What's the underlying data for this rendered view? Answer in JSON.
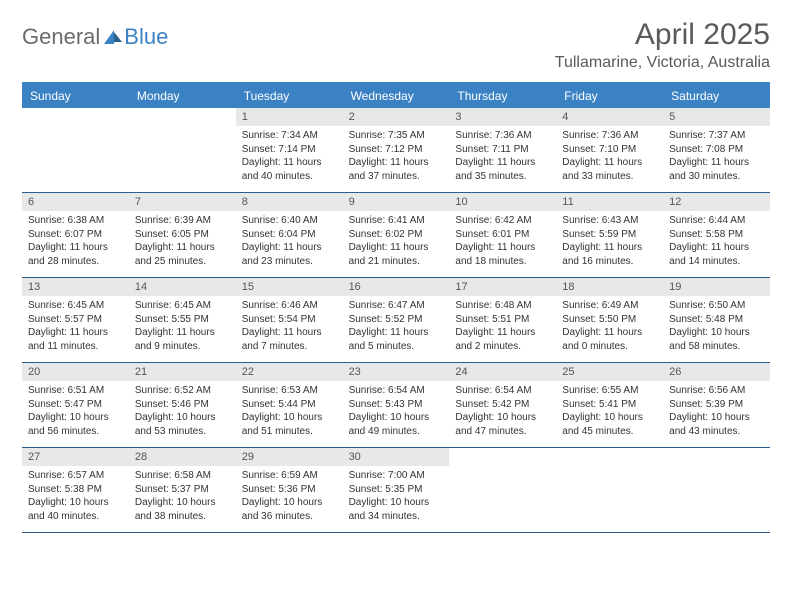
{
  "brand": {
    "part1": "General",
    "part2": "Blue"
  },
  "title": "April 2025",
  "location": "Tullamarine, Victoria, Australia",
  "colors": {
    "header_bg": "#3b82c4",
    "border": "#2a5e8a",
    "daynum_bg": "#e8e8e8",
    "text": "#333333",
    "muted": "#5a5a5a"
  },
  "day_names": [
    "Sunday",
    "Monday",
    "Tuesday",
    "Wednesday",
    "Thursday",
    "Friday",
    "Saturday"
  ],
  "weeks": [
    [
      {
        "empty": true
      },
      {
        "empty": true
      },
      {
        "num": "1",
        "sunrise": "Sunrise: 7:34 AM",
        "sunset": "Sunset: 7:14 PM",
        "daylight": "Daylight: 11 hours and 40 minutes."
      },
      {
        "num": "2",
        "sunrise": "Sunrise: 7:35 AM",
        "sunset": "Sunset: 7:12 PM",
        "daylight": "Daylight: 11 hours and 37 minutes."
      },
      {
        "num": "3",
        "sunrise": "Sunrise: 7:36 AM",
        "sunset": "Sunset: 7:11 PM",
        "daylight": "Daylight: 11 hours and 35 minutes."
      },
      {
        "num": "4",
        "sunrise": "Sunrise: 7:36 AM",
        "sunset": "Sunset: 7:10 PM",
        "daylight": "Daylight: 11 hours and 33 minutes."
      },
      {
        "num": "5",
        "sunrise": "Sunrise: 7:37 AM",
        "sunset": "Sunset: 7:08 PM",
        "daylight": "Daylight: 11 hours and 30 minutes."
      }
    ],
    [
      {
        "num": "6",
        "sunrise": "Sunrise: 6:38 AM",
        "sunset": "Sunset: 6:07 PM",
        "daylight": "Daylight: 11 hours and 28 minutes."
      },
      {
        "num": "7",
        "sunrise": "Sunrise: 6:39 AM",
        "sunset": "Sunset: 6:05 PM",
        "daylight": "Daylight: 11 hours and 25 minutes."
      },
      {
        "num": "8",
        "sunrise": "Sunrise: 6:40 AM",
        "sunset": "Sunset: 6:04 PM",
        "daylight": "Daylight: 11 hours and 23 minutes."
      },
      {
        "num": "9",
        "sunrise": "Sunrise: 6:41 AM",
        "sunset": "Sunset: 6:02 PM",
        "daylight": "Daylight: 11 hours and 21 minutes."
      },
      {
        "num": "10",
        "sunrise": "Sunrise: 6:42 AM",
        "sunset": "Sunset: 6:01 PM",
        "daylight": "Daylight: 11 hours and 18 minutes."
      },
      {
        "num": "11",
        "sunrise": "Sunrise: 6:43 AM",
        "sunset": "Sunset: 5:59 PM",
        "daylight": "Daylight: 11 hours and 16 minutes."
      },
      {
        "num": "12",
        "sunrise": "Sunrise: 6:44 AM",
        "sunset": "Sunset: 5:58 PM",
        "daylight": "Daylight: 11 hours and 14 minutes."
      }
    ],
    [
      {
        "num": "13",
        "sunrise": "Sunrise: 6:45 AM",
        "sunset": "Sunset: 5:57 PM",
        "daylight": "Daylight: 11 hours and 11 minutes."
      },
      {
        "num": "14",
        "sunrise": "Sunrise: 6:45 AM",
        "sunset": "Sunset: 5:55 PM",
        "daylight": "Daylight: 11 hours and 9 minutes."
      },
      {
        "num": "15",
        "sunrise": "Sunrise: 6:46 AM",
        "sunset": "Sunset: 5:54 PM",
        "daylight": "Daylight: 11 hours and 7 minutes."
      },
      {
        "num": "16",
        "sunrise": "Sunrise: 6:47 AM",
        "sunset": "Sunset: 5:52 PM",
        "daylight": "Daylight: 11 hours and 5 minutes."
      },
      {
        "num": "17",
        "sunrise": "Sunrise: 6:48 AM",
        "sunset": "Sunset: 5:51 PM",
        "daylight": "Daylight: 11 hours and 2 minutes."
      },
      {
        "num": "18",
        "sunrise": "Sunrise: 6:49 AM",
        "sunset": "Sunset: 5:50 PM",
        "daylight": "Daylight: 11 hours and 0 minutes."
      },
      {
        "num": "19",
        "sunrise": "Sunrise: 6:50 AM",
        "sunset": "Sunset: 5:48 PM",
        "daylight": "Daylight: 10 hours and 58 minutes."
      }
    ],
    [
      {
        "num": "20",
        "sunrise": "Sunrise: 6:51 AM",
        "sunset": "Sunset: 5:47 PM",
        "daylight": "Daylight: 10 hours and 56 minutes."
      },
      {
        "num": "21",
        "sunrise": "Sunrise: 6:52 AM",
        "sunset": "Sunset: 5:46 PM",
        "daylight": "Daylight: 10 hours and 53 minutes."
      },
      {
        "num": "22",
        "sunrise": "Sunrise: 6:53 AM",
        "sunset": "Sunset: 5:44 PM",
        "daylight": "Daylight: 10 hours and 51 minutes."
      },
      {
        "num": "23",
        "sunrise": "Sunrise: 6:54 AM",
        "sunset": "Sunset: 5:43 PM",
        "daylight": "Daylight: 10 hours and 49 minutes."
      },
      {
        "num": "24",
        "sunrise": "Sunrise: 6:54 AM",
        "sunset": "Sunset: 5:42 PM",
        "daylight": "Daylight: 10 hours and 47 minutes."
      },
      {
        "num": "25",
        "sunrise": "Sunrise: 6:55 AM",
        "sunset": "Sunset: 5:41 PM",
        "daylight": "Daylight: 10 hours and 45 minutes."
      },
      {
        "num": "26",
        "sunrise": "Sunrise: 6:56 AM",
        "sunset": "Sunset: 5:39 PM",
        "daylight": "Daylight: 10 hours and 43 minutes."
      }
    ],
    [
      {
        "num": "27",
        "sunrise": "Sunrise: 6:57 AM",
        "sunset": "Sunset: 5:38 PM",
        "daylight": "Daylight: 10 hours and 40 minutes."
      },
      {
        "num": "28",
        "sunrise": "Sunrise: 6:58 AM",
        "sunset": "Sunset: 5:37 PM",
        "daylight": "Daylight: 10 hours and 38 minutes."
      },
      {
        "num": "29",
        "sunrise": "Sunrise: 6:59 AM",
        "sunset": "Sunset: 5:36 PM",
        "daylight": "Daylight: 10 hours and 36 minutes."
      },
      {
        "num": "30",
        "sunrise": "Sunrise: 7:00 AM",
        "sunset": "Sunset: 5:35 PM",
        "daylight": "Daylight: 10 hours and 34 minutes."
      },
      {
        "empty": true
      },
      {
        "empty": true
      },
      {
        "empty": true
      }
    ]
  ]
}
